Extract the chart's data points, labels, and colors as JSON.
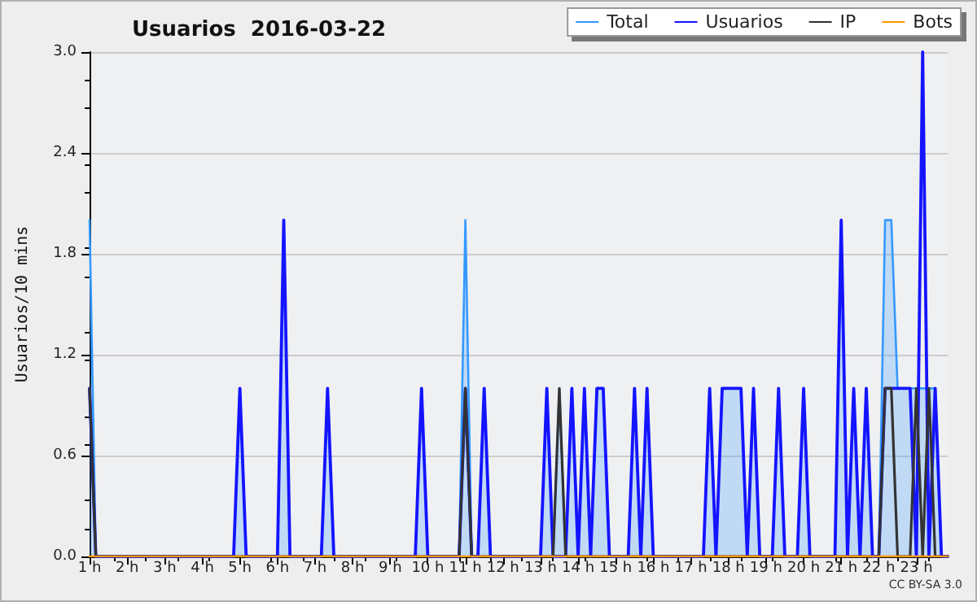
{
  "chart_data": {
    "type": "area",
    "title": "Usuarios  2016-03-22",
    "ylabel": "Usuarios/10 mins",
    "annotations": [
      "CC BY-SA 3.0"
    ],
    "xlim": [
      1,
      23.833
    ],
    "xticks": [
      {
        "value": 1,
        "label": "1 h"
      },
      {
        "value": 2,
        "label": "2 h"
      },
      {
        "value": 3,
        "label": "3 h"
      },
      {
        "value": 4,
        "label": "4 h"
      },
      {
        "value": 5,
        "label": "5 h"
      },
      {
        "value": 6,
        "label": "6 h"
      },
      {
        "value": 7,
        "label": "7 h"
      },
      {
        "value": 8,
        "label": "8 h"
      },
      {
        "value": 9,
        "label": "9 h"
      },
      {
        "value": 10,
        "label": "10 h"
      },
      {
        "value": 11,
        "label": "11 h"
      },
      {
        "value": 12,
        "label": "12 h"
      },
      {
        "value": 13,
        "label": "13 h"
      },
      {
        "value": 14,
        "label": "14 h"
      },
      {
        "value": 15,
        "label": "15 h"
      },
      {
        "value": 16,
        "label": "16 h"
      },
      {
        "value": 17,
        "label": "17 h"
      },
      {
        "value": 18,
        "label": "18 h"
      },
      {
        "value": 19,
        "label": "19 h"
      },
      {
        "value": 20,
        "label": "20 h"
      },
      {
        "value": 21,
        "label": "21 h"
      },
      {
        "value": 22,
        "label": "22 h"
      },
      {
        "value": 23,
        "label": "23 h"
      }
    ],
    "ylim": [
      0,
      3
    ],
    "yticks": [
      {
        "value": 0,
        "label": "0.0"
      },
      {
        "value": 0.6,
        "label": "0.6"
      },
      {
        "value": 1.2,
        "label": "1.2"
      },
      {
        "value": 1.8,
        "label": "1.8"
      },
      {
        "value": 2.4,
        "label": "2.4"
      },
      {
        "value": 3,
        "label": "3.0"
      }
    ],
    "grid": "y",
    "legend": "top right",
    "marker": "none",
    "line_style": "solid",
    "series": [
      {
        "name": "Total",
        "color": "#3399ff",
        "x": [
          1,
          1.167,
          4.833,
          5,
          5.167,
          6,
          6.167,
          6.333,
          7.167,
          7.333,
          7.5,
          9.667,
          9.833,
          10,
          10.833,
          11,
          11.167,
          11.333,
          11.5,
          11.667,
          13,
          13.167,
          13.333,
          13.5,
          13.667,
          13.833,
          14,
          14.167,
          14.333,
          14.5,
          14.667,
          14.833,
          15.333,
          15.5,
          15.667,
          15.833,
          16,
          17.333,
          17.5,
          17.667,
          17.833,
          18.333,
          18.5,
          18.667,
          18.833,
          19.167,
          19.333,
          19.5,
          19.833,
          20,
          20.167,
          20.833,
          21,
          21.167,
          21.333,
          21.5,
          21.667,
          21.833,
          22,
          22.167,
          22.333,
          22.5,
          23,
          23.167,
          23.333,
          23.5,
          23.667,
          23.833
        ],
        "values": [
          2,
          0,
          0,
          1,
          0,
          0,
          2,
          0,
          0,
          1,
          0,
          0,
          1,
          0,
          0,
          2,
          0,
          0,
          1,
          0,
          0,
          1,
          0,
          1,
          0,
          1,
          0,
          1,
          0,
          1,
          1,
          0,
          0,
          1,
          0,
          1,
          0,
          0,
          1,
          0,
          1,
          1,
          0,
          1,
          0,
          0,
          1,
          0,
          0,
          1,
          0,
          0,
          2,
          0,
          1,
          0,
          1,
          0,
          0,
          2,
          2,
          1,
          1,
          null,
          1,
          1,
          0,
          0
        ]
      },
      {
        "name": "Usuarios",
        "type": "line",
        "color": "#1414ff",
        "x": [
          1,
          1.167,
          4.833,
          5,
          5.167,
          6,
          6.167,
          6.333,
          7.167,
          7.333,
          7.5,
          9.667,
          9.833,
          10,
          10.833,
          11,
          11.167,
          11.333,
          11.5,
          11.667,
          13,
          13.167,
          13.333,
          13.667,
          13.833,
          14,
          14.167,
          14.333,
          14.5,
          14.667,
          14.833,
          15.333,
          15.5,
          15.667,
          15.833,
          16,
          17.333,
          17.5,
          17.667,
          17.833,
          18.333,
          18.5,
          18.667,
          18.833,
          19.167,
          19.333,
          19.5,
          19.833,
          20,
          20.167,
          20.833,
          21,
          21.167,
          21.333,
          21.5,
          21.667,
          21.833,
          22,
          22.167,
          22.833,
          23,
          23.167,
          23.333,
          23.5,
          23.667,
          23.833
        ],
        "values": [
          1,
          0,
          0,
          1,
          0,
          0,
          2,
          0,
          0,
          1,
          0,
          0,
          1,
          0,
          0,
          1,
          0,
          0,
          1,
          0,
          0,
          1,
          0,
          0,
          1,
          0,
          1,
          0,
          1,
          1,
          0,
          0,
          1,
          0,
          1,
          0,
          0,
          1,
          0,
          1,
          1,
          0,
          1,
          0,
          0,
          1,
          0,
          0,
          1,
          0,
          0,
          2,
          0,
          1,
          0,
          1,
          0,
          0,
          1,
          1,
          0,
          3,
          0,
          1,
          0,
          0
        ]
      },
      {
        "name": "IP",
        "type": "line",
        "color": "#333333",
        "x": [
          1,
          1.167,
          10.833,
          11,
          11.167,
          13.333,
          13.5,
          13.667,
          22,
          22.167,
          22.333,
          22.5,
          22.833,
          23,
          23.167,
          23.333,
          23.5,
          23.833
        ],
        "values": [
          1,
          0,
          0,
          1,
          0,
          0,
          1,
          0,
          0,
          1,
          1,
          0,
          0,
          1,
          0,
          1,
          0,
          0
        ]
      },
      {
        "name": "Bots",
        "type": "line",
        "color": "#ff9900",
        "x": [
          1,
          23.833
        ],
        "values": [
          0,
          0
        ]
      }
    ]
  }
}
